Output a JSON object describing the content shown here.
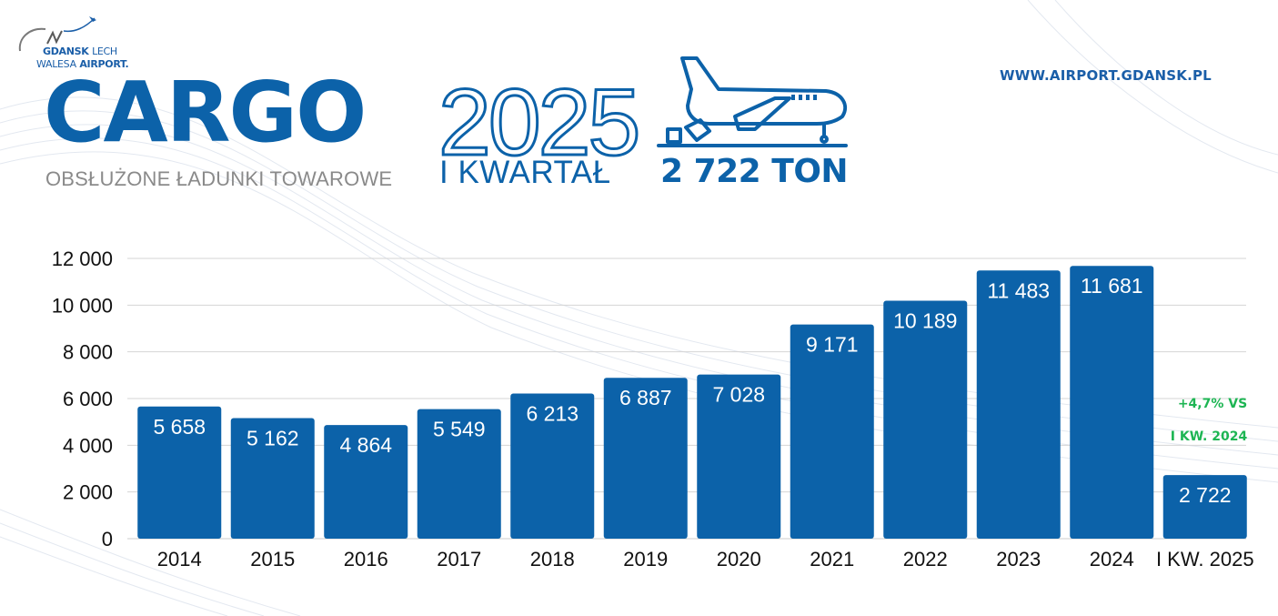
{
  "logo": {
    "line1_a": "GDANSK",
    "line1_b": "LECH",
    "line2_a": "WALESA",
    "line2_b": "AIRPORT."
  },
  "header": {
    "title": "CARGO",
    "subtitle": "OBSŁUŻONE ŁADUNKI TOWAROWE",
    "year": "2025",
    "quarter": "I KWARTAŁ",
    "tons": "2 722 TON",
    "url": "WWW.AIRPORT.GDANSK.PL"
  },
  "colors": {
    "bar": "#0c62a9",
    "accent": "#1db553",
    "text": "#111111"
  },
  "chart_data": {
    "type": "bar",
    "title": "CARGO",
    "categories": [
      "2014",
      "2015",
      "2016",
      "2017",
      "2018",
      "2019",
      "2020",
      "2021",
      "2022",
      "2023",
      "2024",
      "I KW. 2025"
    ],
    "values": [
      5658,
      5162,
      4864,
      5549,
      6213,
      6887,
      7028,
      9171,
      10189,
      11483,
      11681,
      2722
    ],
    "value_labels": [
      "5 658",
      "5 162",
      "4 864",
      "5 549",
      "6 213",
      "6 887",
      "7 028",
      "9 171",
      "10 189",
      "11 483",
      "11 681",
      "2 722"
    ],
    "yticks": [
      0,
      2000,
      4000,
      6000,
      8000,
      10000,
      12000
    ],
    "ytick_labels": [
      "0",
      "2 000",
      "4 000",
      "6 000",
      "8 000",
      "10 000",
      "12 000"
    ],
    "ylim": [
      0,
      12000
    ],
    "grid": true,
    "annotations": [
      "+4,7% VS",
      "I KW. 2024"
    ]
  }
}
